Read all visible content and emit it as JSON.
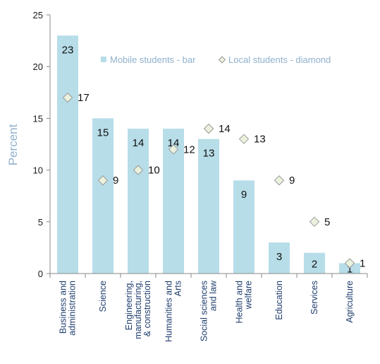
{
  "chart_data": {
    "type": "bar",
    "categories": [
      [
        "Business and",
        "administration"
      ],
      [
        "Science"
      ],
      [
        "Engineering,",
        "manufacturing,",
        "& construction"
      ],
      [
        "Humanities and",
        "Arts"
      ],
      [
        "Social sciences",
        "and law"
      ],
      [
        "Health and",
        "welfare"
      ],
      [
        "Education"
      ],
      [
        "Services"
      ],
      [
        "Agriculture"
      ]
    ],
    "series": [
      {
        "name": "Mobile students - bar",
        "kind": "bar",
        "values": [
          23,
          15,
          14,
          14,
          13,
          9,
          3,
          2,
          1
        ]
      },
      {
        "name": "Local students - diamond",
        "kind": "marker",
        "values": [
          17,
          9,
          10,
          12,
          14,
          13,
          9,
          5,
          1
        ]
      }
    ],
    "ylabel": "Percent",
    "ylim": [
      0,
      25
    ],
    "yticks": [
      0,
      5,
      10,
      15,
      20,
      25
    ],
    "grid": false,
    "legend_position": "top-right",
    "colors": {
      "bar": "#b7dde8",
      "marker_fill": "#eaf1dd",
      "marker_stroke": "#9a9a9a",
      "axis": "#888888",
      "label_color": "#8fb0cc"
    }
  }
}
